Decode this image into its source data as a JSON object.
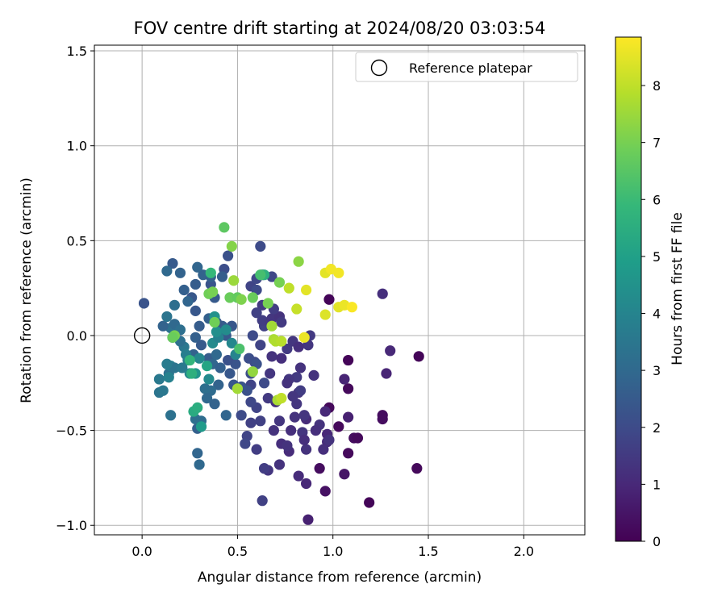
{
  "chart_data": {
    "type": "scatter",
    "title": "FOV centre drift starting at 2024/08/20 03:03:54",
    "xlabel": "Angular distance from reference (arcmin)",
    "ylabel": "Rotation from reference (arcmin)",
    "xlim": [
      -0.25,
      2.32
    ],
    "ylim": [
      -1.05,
      1.53
    ],
    "xticks": [
      "0.0",
      "0.5",
      "1.0",
      "1.5",
      "2.0"
    ],
    "xtick_values": [
      0,
      0.5,
      1.0,
      1.5,
      2.0
    ],
    "yticks": [
      "1.5",
      "1.0",
      "0.5",
      "0.0",
      "−0.5",
      "−1.0"
    ],
    "ytick_values": [
      1.5,
      1.0,
      0.5,
      0.0,
      -0.5,
      -1.0
    ],
    "grid": true,
    "legend": {
      "position": "top-right",
      "entries": [
        {
          "label": "Reference platepar",
          "marker": "open-circle",
          "color": "#000000"
        }
      ]
    },
    "reference_point": {
      "x": 0,
      "y": 0
    },
    "colorbar": {
      "label": "Hours from first FF file",
      "min": 0,
      "max": 8.85,
      "ticks": [
        "0",
        "1",
        "2",
        "3",
        "4",
        "5",
        "6",
        "7",
        "8"
      ],
      "tick_values": [
        0,
        1,
        2,
        3,
        4,
        5,
        6,
        7,
        8
      ],
      "colormap": "viridis",
      "colors": [
        "#440154",
        "#482878",
        "#3e4a89",
        "#31688e",
        "#26828e",
        "#1f9e89",
        "#35b779",
        "#6ece58",
        "#b5de2b",
        "#fde725"
      ]
    },
    "points": [
      {
        "x": 0.98,
        "y": 0.19,
        "h": 0.1
      },
      {
        "x": 1.08,
        "y": -0.13,
        "h": 0.1
      },
      {
        "x": 1.08,
        "y": -0.28,
        "h": 0.2
      },
      {
        "x": 1.19,
        "y": -0.88,
        "h": 0.1
      },
      {
        "x": 1.45,
        "y": -0.11,
        "h": 0.1
      },
      {
        "x": 1.44,
        "y": -0.7,
        "h": 0.2
      },
      {
        "x": 1.26,
        "y": -0.42,
        "h": 0.3
      },
      {
        "x": 1.26,
        "y": -0.44,
        "h": 0.3
      },
      {
        "x": 1.11,
        "y": -0.54,
        "h": 0.3
      },
      {
        "x": 1.13,
        "y": -0.54,
        "h": 0.2
      },
      {
        "x": 1.08,
        "y": -0.62,
        "h": 0.2
      },
      {
        "x": 1.03,
        "y": -0.48,
        "h": 0.2
      },
      {
        "x": 0.98,
        "y": -0.38,
        "h": 0.2
      },
      {
        "x": 0.96,
        "y": -0.82,
        "h": 0.4
      },
      {
        "x": 0.93,
        "y": -0.7,
        "h": 0.3
      },
      {
        "x": 1.06,
        "y": -0.73,
        "h": 0.5
      },
      {
        "x": 0.87,
        "y": -0.97,
        "h": 0.8
      },
      {
        "x": 1.08,
        "y": -0.43,
        "h": 0.8
      },
      {
        "x": 1.06,
        "y": -0.23,
        "h": 0.9
      },
      {
        "x": 1.28,
        "y": -0.2,
        "h": 0.9
      },
      {
        "x": 1.3,
        "y": -0.08,
        "h": 1.0
      },
      {
        "x": 1.26,
        "y": 0.22,
        "h": 1.2
      },
      {
        "x": 0.96,
        "y": -0.4,
        "h": 1.0
      },
      {
        "x": 0.97,
        "y": -0.52,
        "h": 1.0
      },
      {
        "x": 0.97,
        "y": -0.56,
        "h": 1.1
      },
      {
        "x": 0.95,
        "y": -0.6,
        "h": 1.2
      },
      {
        "x": 0.98,
        "y": -0.55,
        "h": 1.3
      },
      {
        "x": 0.93,
        "y": -0.47,
        "h": 1.3
      },
      {
        "x": 0.91,
        "y": -0.5,
        "h": 1.2
      },
      {
        "x": 0.86,
        "y": -0.44,
        "h": 1.1
      },
      {
        "x": 0.84,
        "y": -0.51,
        "h": 1.4
      },
      {
        "x": 0.86,
        "y": -0.6,
        "h": 1.3
      },
      {
        "x": 0.86,
        "y": -0.78,
        "h": 1.0
      },
      {
        "x": 0.82,
        "y": -0.74,
        "h": 1.1
      },
      {
        "x": 0.85,
        "y": -0.55,
        "h": 1.2
      },
      {
        "x": 0.85,
        "y": -0.42,
        "h": 1.4
      },
      {
        "x": 0.9,
        "y": -0.21,
        "h": 1.3
      },
      {
        "x": 0.87,
        "y": -0.05,
        "h": 1.4
      },
      {
        "x": 0.88,
        "y": 0.0,
        "h": 1.5
      },
      {
        "x": 0.82,
        "y": -0.3,
        "h": 1.3
      },
      {
        "x": 0.81,
        "y": -0.36,
        "h": 1.4
      },
      {
        "x": 0.8,
        "y": -0.43,
        "h": 1.3
      },
      {
        "x": 0.78,
        "y": -0.5,
        "h": 1.2
      },
      {
        "x": 0.77,
        "y": -0.61,
        "h": 1.1
      },
      {
        "x": 0.73,
        "y": -0.57,
        "h": 1.2
      },
      {
        "x": 0.76,
        "y": -0.58,
        "h": 1.3
      },
      {
        "x": 0.72,
        "y": -0.45,
        "h": 1.4
      },
      {
        "x": 0.69,
        "y": -0.5,
        "h": 1.3
      },
      {
        "x": 0.7,
        "y": -0.35,
        "h": 1.2
      },
      {
        "x": 0.66,
        "y": -0.33,
        "h": 1.5
      },
      {
        "x": 0.67,
        "y": -0.2,
        "h": 1.4
      },
      {
        "x": 0.68,
        "y": -0.11,
        "h": 1.3
      },
      {
        "x": 0.73,
        "y": -0.12,
        "h": 1.2
      },
      {
        "x": 0.76,
        "y": -0.07,
        "h": 1.5
      },
      {
        "x": 0.79,
        "y": -0.03,
        "h": 1.4
      },
      {
        "x": 0.82,
        "y": -0.06,
        "h": 1.2
      },
      {
        "x": 0.83,
        "y": -0.17,
        "h": 1.3
      },
      {
        "x": 0.81,
        "y": -0.22,
        "h": 1.5
      },
      {
        "x": 0.77,
        "y": -0.23,
        "h": 1.4
      },
      {
        "x": 0.76,
        "y": -0.25,
        "h": 1.3
      },
      {
        "x": 0.83,
        "y": -0.29,
        "h": 1.6
      },
      {
        "x": 0.79,
        "y": -0.32,
        "h": 1.4
      },
      {
        "x": 0.72,
        "y": -0.68,
        "h": 1.3
      },
      {
        "x": 0.66,
        "y": -0.71,
        "h": 1.4
      },
      {
        "x": 0.64,
        "y": -0.7,
        "h": 1.6
      },
      {
        "x": 0.63,
        "y": -0.87,
        "h": 1.7
      },
      {
        "x": 0.6,
        "y": -0.6,
        "h": 1.6
      },
      {
        "x": 0.62,
        "y": -0.45,
        "h": 1.7
      },
      {
        "x": 0.6,
        "y": -0.38,
        "h": 1.8
      },
      {
        "x": 0.57,
        "y": -0.46,
        "h": 1.7
      },
      {
        "x": 0.57,
        "y": -0.35,
        "h": 1.9
      },
      {
        "x": 0.55,
        "y": -0.53,
        "h": 1.8
      },
      {
        "x": 0.54,
        "y": -0.57,
        "h": 1.9
      },
      {
        "x": 0.52,
        "y": -0.42,
        "h": 2.0
      },
      {
        "x": 0.57,
        "y": -0.26,
        "h": 1.8
      },
      {
        "x": 0.59,
        "y": -0.14,
        "h": 1.9
      },
      {
        "x": 0.62,
        "y": -0.05,
        "h": 1.8
      },
      {
        "x": 0.64,
        "y": 0.05,
        "h": 1.7
      },
      {
        "x": 0.63,
        "y": 0.08,
        "h": 1.6
      },
      {
        "x": 0.67,
        "y": 0.07,
        "h": 1.5
      },
      {
        "x": 0.68,
        "y": 0.09,
        "h": 1.4
      },
      {
        "x": 0.72,
        "y": 0.1,
        "h": 1.3
      },
      {
        "x": 0.73,
        "y": 0.07,
        "h": 1.5
      },
      {
        "x": 0.69,
        "y": 0.14,
        "h": 1.6
      },
      {
        "x": 0.63,
        "y": 0.16,
        "h": 1.5
      },
      {
        "x": 0.6,
        "y": 0.12,
        "h": 1.7
      },
      {
        "x": 0.57,
        "y": 0.26,
        "h": 1.8
      },
      {
        "x": 0.6,
        "y": 0.3,
        "h": 1.9
      },
      {
        "x": 0.62,
        "y": 0.47,
        "h": 2.0
      },
      {
        "x": 0.63,
        "y": 0.32,
        "h": 2.1
      },
      {
        "x": 0.68,
        "y": 0.31,
        "h": 1.9
      },
      {
        "x": 0.6,
        "y": 0.24,
        "h": 2.0
      },
      {
        "x": 0.58,
        "y": 0.0,
        "h": 2.0
      },
      {
        "x": 0.56,
        "y": -0.12,
        "h": 2.1
      },
      {
        "x": 0.6,
        "y": -0.15,
        "h": 2.2
      },
      {
        "x": 0.57,
        "y": -0.2,
        "h": 2.1
      },
      {
        "x": 0.64,
        "y": -0.25,
        "h": 2.0
      },
      {
        "x": 0.55,
        "y": -0.29,
        "h": 2.2
      },
      {
        "x": 0.52,
        "y": -0.27,
        "h": 2.3
      },
      {
        "x": 0.48,
        "y": -0.26,
        "h": 2.4
      },
      {
        "x": 0.49,
        "y": -0.15,
        "h": 2.3
      },
      {
        "x": 0.46,
        "y": -0.2,
        "h": 2.4
      },
      {
        "x": 0.45,
        "y": -0.13,
        "h": 2.2
      },
      {
        "x": 0.44,
        "y": 0.0,
        "h": 2.5
      },
      {
        "x": 0.47,
        "y": 0.05,
        "h": 2.4
      },
      {
        "x": 0.42,
        "y": 0.05,
        "h": 2.6
      },
      {
        "x": 0.39,
        "y": 0.07,
        "h": 2.4
      },
      {
        "x": 0.35,
        "y": 0.09,
        "h": 2.7
      },
      {
        "x": 0.38,
        "y": 0.2,
        "h": 2.5
      },
      {
        "x": 0.36,
        "y": 0.27,
        "h": 2.3
      },
      {
        "x": 0.43,
        "y": 0.35,
        "h": 2.1
      },
      {
        "x": 0.45,
        "y": 0.42,
        "h": 2.2
      },
      {
        "x": 0.42,
        "y": 0.31,
        "h": 2.6
      },
      {
        "x": 0.36,
        "y": 0.31,
        "h": 2.7
      },
      {
        "x": 0.32,
        "y": 0.32,
        "h": 2.8
      },
      {
        "x": 0.29,
        "y": 0.36,
        "h": 2.9
      },
      {
        "x": 0.28,
        "y": 0.27,
        "h": 2.6
      },
      {
        "x": 0.26,
        "y": 0.2,
        "h": 2.4
      },
      {
        "x": 0.22,
        "y": 0.24,
        "h": 2.7
      },
      {
        "x": 0.2,
        "y": 0.33,
        "h": 2.8
      },
      {
        "x": 0.16,
        "y": 0.38,
        "h": 2.5
      },
      {
        "x": 0.13,
        "y": 0.34,
        "h": 3.0
      },
      {
        "x": 0.01,
        "y": 0.17,
        "h": 2.3
      },
      {
        "x": 0.17,
        "y": 0.16,
        "h": 3.2
      },
      {
        "x": 0.24,
        "y": 0.18,
        "h": 2.9
      },
      {
        "x": 0.28,
        "y": 0.13,
        "h": 2.4
      },
      {
        "x": 0.3,
        "y": 0.05,
        "h": 2.6
      },
      {
        "x": 0.28,
        "y": -0.01,
        "h": 2.7
      },
      {
        "x": 0.27,
        "y": -0.1,
        "h": 2.8
      },
      {
        "x": 0.31,
        "y": -0.05,
        "h": 2.5
      },
      {
        "x": 0.35,
        "y": -0.12,
        "h": 2.6
      },
      {
        "x": 0.37,
        "y": -0.15,
        "h": 2.9
      },
      {
        "x": 0.39,
        "y": -0.1,
        "h": 3.0
      },
      {
        "x": 0.41,
        "y": -0.17,
        "h": 2.7
      },
      {
        "x": 0.4,
        "y": -0.26,
        "h": 2.8
      },
      {
        "x": 0.36,
        "y": -0.29,
        "h": 3.1
      },
      {
        "x": 0.33,
        "y": -0.28,
        "h": 3.2
      },
      {
        "x": 0.34,
        "y": -0.33,
        "h": 3.0
      },
      {
        "x": 0.38,
        "y": -0.36,
        "h": 2.8
      },
      {
        "x": 0.44,
        "y": -0.42,
        "h": 2.9
      },
      {
        "x": 0.31,
        "y": -0.45,
        "h": 3.1
      },
      {
        "x": 0.31,
        "y": -0.48,
        "h": 3.0
      },
      {
        "x": 0.29,
        "y": -0.49,
        "h": 2.7
      },
      {
        "x": 0.29,
        "y": -0.62,
        "h": 2.9
      },
      {
        "x": 0.3,
        "y": -0.68,
        "h": 3.0
      },
      {
        "x": 0.28,
        "y": -0.44,
        "h": 3.2
      },
      {
        "x": 0.15,
        "y": -0.42,
        "h": 3.3
      },
      {
        "x": 0.09,
        "y": -0.3,
        "h": 3.4
      },
      {
        "x": 0.11,
        "y": -0.29,
        "h": 3.5
      },
      {
        "x": 0.14,
        "y": -0.2,
        "h": 3.3
      },
      {
        "x": 0.09,
        "y": -0.23,
        "h": 3.6
      },
      {
        "x": 0.15,
        "y": -0.16,
        "h": 3.8
      },
      {
        "x": 0.17,
        "y": -0.17,
        "h": 3.4
      },
      {
        "x": 0.13,
        "y": -0.15,
        "h": 3.7
      },
      {
        "x": 0.14,
        "y": -0.22,
        "h": 3.9
      },
      {
        "x": 0.21,
        "y": -0.17,
        "h": 3.6
      },
      {
        "x": 0.22,
        "y": -0.06,
        "h": 3.5
      },
      {
        "x": 0.2,
        "y": -0.03,
        "h": 3.2
      },
      {
        "x": 0.16,
        "y": -0.01,
        "h": 3.1
      },
      {
        "x": 0.15,
        "y": 0.04,
        "h": 3.3
      },
      {
        "x": 0.17,
        "y": 0.06,
        "h": 3.0
      },
      {
        "x": 0.2,
        "y": 0.03,
        "h": 3.2
      },
      {
        "x": 0.11,
        "y": 0.05,
        "h": 2.8
      },
      {
        "x": 0.13,
        "y": 0.1,
        "h": 3.4
      },
      {
        "x": 0.23,
        "y": -0.1,
        "h": 3.8
      },
      {
        "x": 0.24,
        "y": -0.13,
        "h": 3.7
      },
      {
        "x": 0.25,
        "y": -0.2,
        "h": 4.0
      },
      {
        "x": 0.3,
        "y": -0.12,
        "h": 4.1
      },
      {
        "x": 0.37,
        "y": -0.04,
        "h": 4.2
      },
      {
        "x": 0.4,
        "y": -0.01,
        "h": 3.9
      },
      {
        "x": 0.39,
        "y": 0.02,
        "h": 4.4
      },
      {
        "x": 0.38,
        "y": 0.1,
        "h": 4.5
      },
      {
        "x": 0.44,
        "y": 0.03,
        "h": 4.3
      },
      {
        "x": 0.47,
        "y": -0.04,
        "h": 4.1
      },
      {
        "x": 0.49,
        "y": -0.1,
        "h": 4.0
      },
      {
        "x": 0.35,
        "y": -0.23,
        "h": 4.2
      },
      {
        "x": 0.28,
        "y": -0.2,
        "h": 4.6
      },
      {
        "x": 0.31,
        "y": -0.48,
        "h": 4.8
      },
      {
        "x": 0.27,
        "y": -0.4,
        "h": 5.4
      },
      {
        "x": 0.29,
        "y": -0.38,
        "h": 5.5
      },
      {
        "x": 0.34,
        "y": -0.16,
        "h": 5.2
      },
      {
        "x": 0.26,
        "y": -0.2,
        "h": 5.6
      },
      {
        "x": 0.25,
        "y": -0.13,
        "h": 5.8
      },
      {
        "x": 0.36,
        "y": 0.33,
        "h": 5.9
      },
      {
        "x": 0.64,
        "y": 0.32,
        "h": 5.6
      },
      {
        "x": 0.62,
        "y": 0.32,
        "h": 6.2
      },
      {
        "x": 0.51,
        "y": -0.07,
        "h": 6.3
      },
      {
        "x": 0.43,
        "y": 0.57,
        "h": 6.6
      },
      {
        "x": 0.38,
        "y": 0.07,
        "h": 6.9
      },
      {
        "x": 0.35,
        "y": 0.22,
        "h": 6.9
      },
      {
        "x": 0.37,
        "y": 0.23,
        "h": 7.0
      },
      {
        "x": 0.46,
        "y": 0.2,
        "h": 6.8
      },
      {
        "x": 0.5,
        "y": 0.2,
        "h": 6.7
      },
      {
        "x": 0.52,
        "y": 0.19,
        "h": 7.1
      },
      {
        "x": 0.58,
        "y": 0.2,
        "h": 6.8
      },
      {
        "x": 0.66,
        "y": 0.17,
        "h": 7.0
      },
      {
        "x": 0.72,
        "y": 0.28,
        "h": 7.0
      },
      {
        "x": 0.82,
        "y": 0.39,
        "h": 7.3
      },
      {
        "x": 0.47,
        "y": 0.47,
        "h": 7.2
      },
      {
        "x": 0.48,
        "y": 0.29,
        "h": 7.5
      },
      {
        "x": 0.58,
        "y": -0.19,
        "h": 7.4
      },
      {
        "x": 0.5,
        "y": -0.28,
        "h": 7.6
      },
      {
        "x": 0.17,
        "y": 0.0,
        "h": 7.0
      },
      {
        "x": 0.16,
        "y": -0.01,
        "h": 6.8
      },
      {
        "x": 0.68,
        "y": 0.05,
        "h": 7.6
      },
      {
        "x": 0.69,
        "y": -0.02,
        "h": 7.7
      },
      {
        "x": 0.7,
        "y": -0.03,
        "h": 7.8
      },
      {
        "x": 0.73,
        "y": -0.03,
        "h": 7.9
      },
      {
        "x": 0.71,
        "y": -0.34,
        "h": 7.7
      },
      {
        "x": 0.73,
        "y": -0.33,
        "h": 8.0
      },
      {
        "x": 0.77,
        "y": 0.25,
        "h": 8.0
      },
      {
        "x": 0.81,
        "y": 0.14,
        "h": 8.1
      },
      {
        "x": 0.86,
        "y": 0.24,
        "h": 8.5
      },
      {
        "x": 0.85,
        "y": -0.01,
        "h": 8.6
      },
      {
        "x": 0.96,
        "y": 0.11,
        "h": 8.4
      },
      {
        "x": 0.96,
        "y": 0.33,
        "h": 8.5
      },
      {
        "x": 0.99,
        "y": 0.35,
        "h": 8.7
      },
      {
        "x": 1.03,
        "y": 0.33,
        "h": 8.7
      },
      {
        "x": 1.03,
        "y": 0.15,
        "h": 8.5
      },
      {
        "x": 1.06,
        "y": 0.16,
        "h": 8.6
      },
      {
        "x": 1.1,
        "y": 0.15,
        "h": 8.8
      }
    ]
  }
}
